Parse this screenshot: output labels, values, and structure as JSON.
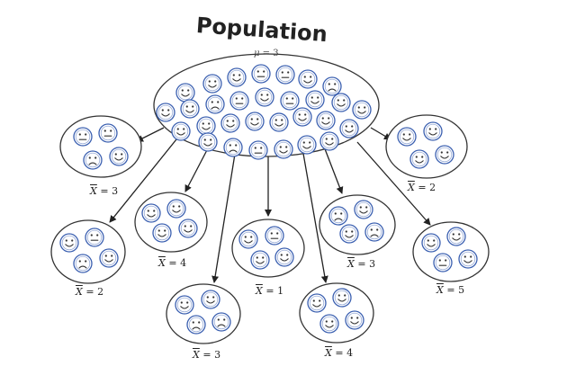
{
  "title": "Population",
  "population": {
    "param": "μ",
    "eq": " = ",
    "value": "3"
  },
  "samples": [
    {
      "stat": "X",
      "eq": " = ",
      "value": "3"
    },
    {
      "stat": "X",
      "eq": " = ",
      "value": "2"
    },
    {
      "stat": "X",
      "eq": " = ",
      "value": "4"
    },
    {
      "stat": "X",
      "eq": " = ",
      "value": "1"
    },
    {
      "stat": "X",
      "eq": " = ",
      "value": "3"
    },
    {
      "stat": "X",
      "eq": " = ",
      "value": "5"
    },
    {
      "stat": "X",
      "eq": " = ",
      "value": "3"
    },
    {
      "stat": "X",
      "eq": " = ",
      "value": "4"
    },
    {
      "stat": "X",
      "eq": " = ",
      "value": "2"
    }
  ],
  "colors": {
    "face_stroke": "#3a5fb0",
    "ellipse_stroke": "#333333",
    "arrow": "#222222"
  },
  "icons": [
    "smile-face-icon",
    "neutral-face-icon",
    "sad-face-icon"
  ]
}
